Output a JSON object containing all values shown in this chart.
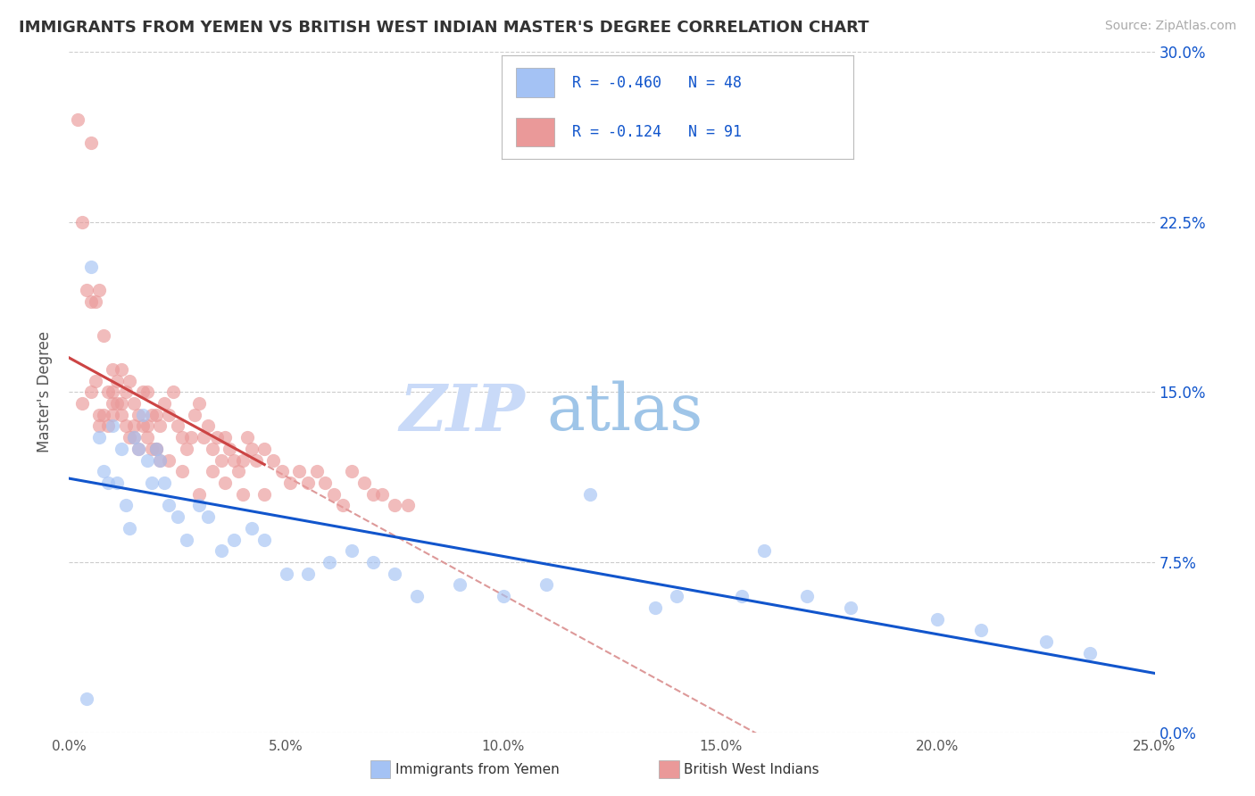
{
  "title": "IMMIGRANTS FROM YEMEN VS BRITISH WEST INDIAN MASTER'S DEGREE CORRELATION CHART",
  "source": "Source: ZipAtlas.com",
  "ylabel": "Master's Degree",
  "xlim": [
    0.0,
    25.0
  ],
  "ylim": [
    0.0,
    30.0
  ],
  "xticks": [
    0.0,
    5.0,
    10.0,
    15.0,
    20.0,
    25.0
  ],
  "yticks_right": [
    0.0,
    7.5,
    15.0,
    22.5,
    30.0
  ],
  "blue_label": "Immigrants from Yemen",
  "pink_label": "British West Indians",
  "blue_R": "-0.460",
  "blue_N": "48",
  "pink_R": "-0.124",
  "pink_N": "91",
  "blue_color": "#a4c2f4",
  "pink_color": "#ea9999",
  "blue_line_color": "#1155cc",
  "pink_line_color": "#cc4444",
  "dashed_line_color": "#dd9999",
  "watermark_zip": "ZIP",
  "watermark_atlas": "atlas",
  "background_color": "#ffffff",
  "blue_scatter_x": [
    0.4,
    0.5,
    0.7,
    0.8,
    0.9,
    1.0,
    1.1,
    1.2,
    1.3,
    1.4,
    1.5,
    1.6,
    1.7,
    1.8,
    1.9,
    2.0,
    2.1,
    2.2,
    2.3,
    2.5,
    2.7,
    3.0,
    3.2,
    3.5,
    3.8,
    4.2,
    4.5,
    5.0,
    5.5,
    6.0,
    6.5,
    7.0,
    7.5,
    8.0,
    9.0,
    10.0,
    11.0,
    12.0,
    13.5,
    14.0,
    15.5,
    16.0,
    17.0,
    18.0,
    20.0,
    21.0,
    22.5,
    23.5
  ],
  "blue_scatter_y": [
    1.5,
    20.5,
    13.0,
    11.5,
    11.0,
    13.5,
    11.0,
    12.5,
    10.0,
    9.0,
    13.0,
    12.5,
    14.0,
    12.0,
    11.0,
    12.5,
    12.0,
    11.0,
    10.0,
    9.5,
    8.5,
    10.0,
    9.5,
    8.0,
    8.5,
    9.0,
    8.5,
    7.0,
    7.0,
    7.5,
    8.0,
    7.5,
    7.0,
    6.0,
    6.5,
    6.0,
    6.5,
    10.5,
    5.5,
    6.0,
    6.0,
    8.0,
    6.0,
    5.5,
    5.0,
    4.5,
    4.0,
    3.5
  ],
  "pink_scatter_x": [
    0.2,
    0.3,
    0.4,
    0.5,
    0.5,
    0.6,
    0.6,
    0.7,
    0.7,
    0.8,
    0.8,
    0.9,
    0.9,
    1.0,
    1.0,
    1.0,
    1.1,
    1.1,
    1.2,
    1.2,
    1.3,
    1.3,
    1.4,
    1.4,
    1.5,
    1.5,
    1.6,
    1.6,
    1.7,
    1.7,
    1.8,
    1.8,
    1.9,
    1.9,
    2.0,
    2.0,
    2.1,
    2.1,
    2.2,
    2.3,
    2.4,
    2.5,
    2.6,
    2.7,
    2.8,
    2.9,
    3.0,
    3.1,
    3.2,
    3.3,
    3.4,
    3.5,
    3.6,
    3.7,
    3.8,
    3.9,
    4.0,
    4.1,
    4.2,
    4.3,
    4.5,
    4.7,
    4.9,
    5.1,
    5.3,
    5.5,
    5.7,
    5.9,
    6.1,
    6.3,
    6.5,
    6.8,
    7.0,
    7.2,
    7.5,
    7.8,
    0.3,
    0.5,
    0.7,
    1.0,
    1.2,
    1.5,
    1.8,
    2.0,
    2.3,
    2.6,
    3.0,
    3.3,
    3.6,
    4.0,
    4.5
  ],
  "pink_scatter_y": [
    27.0,
    22.5,
    19.5,
    26.0,
    19.0,
    19.0,
    15.5,
    19.5,
    14.0,
    17.5,
    14.0,
    15.0,
    13.5,
    15.0,
    14.5,
    16.0,
    14.5,
    15.5,
    14.0,
    16.0,
    15.0,
    13.5,
    15.5,
    13.0,
    14.5,
    13.5,
    14.0,
    12.5,
    13.5,
    15.0,
    13.0,
    15.0,
    14.0,
    12.5,
    14.0,
    12.5,
    13.5,
    12.0,
    14.5,
    14.0,
    15.0,
    13.5,
    13.0,
    12.5,
    13.0,
    14.0,
    14.5,
    13.0,
    13.5,
    12.5,
    13.0,
    12.0,
    13.0,
    12.5,
    12.0,
    11.5,
    12.0,
    13.0,
    12.5,
    12.0,
    12.5,
    12.0,
    11.5,
    11.0,
    11.5,
    11.0,
    11.5,
    11.0,
    10.5,
    10.0,
    11.5,
    11.0,
    10.5,
    10.5,
    10.0,
    10.0,
    14.5,
    15.0,
    13.5,
    14.0,
    14.5,
    13.0,
    13.5,
    12.5,
    12.0,
    11.5,
    10.5,
    11.5,
    11.0,
    10.5,
    10.5
  ]
}
